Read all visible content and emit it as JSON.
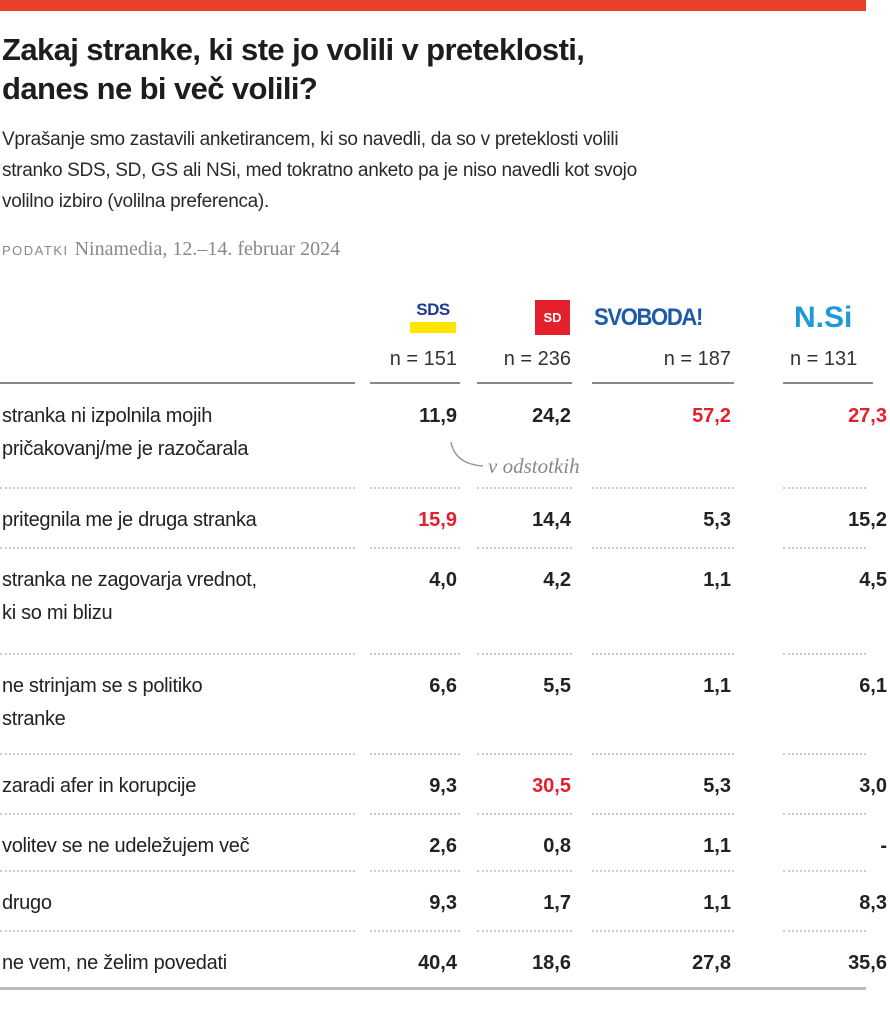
{
  "title_lines": [
    "Zakaj stranke, ki ste jo volili v preteklosti,",
    "danes ne bi več volili?"
  ],
  "subtitle_lines": [
    "Vprašanje smo zastavili anketirancem, ki so navedli, da so v preteklosti volili",
    "stranko SDS, SD, GS ali NSi, med tokratno anketo pa je niso navedli kot svojo",
    "volilno izbiro (volilna preferenca)."
  ],
  "source": {
    "label": "PODATKI",
    "text": "Ninamedia, 12.–14. februar 2024"
  },
  "annotation": "v odstotkih",
  "colors": {
    "accent": "#e8402a",
    "highlight": "#e3202b",
    "sds_blue": "#1f3a93",
    "sds_yellow": "#ffe600",
    "sd_red": "#e3202b",
    "svoboda_blue": "#1c5ba8",
    "nsi_blue": "#1a9ad6"
  },
  "chart_data": {
    "type": "table",
    "unit": "v odstotkih",
    "columns": [
      {
        "party": "SDS",
        "n": "n = 151"
      },
      {
        "party": "SD",
        "n": "n = 236"
      },
      {
        "party": "SVOBODA!",
        "n": "n = 187"
      },
      {
        "party": "N.Si",
        "n": "n = 131"
      }
    ],
    "rows": [
      {
        "label_lines": [
          "stranka ni izpolnila mojih",
          "pričakovanj/me je razočarala"
        ],
        "values": [
          "11,9",
          "24,2",
          "57,2",
          "27,3"
        ],
        "highlight": [
          false,
          false,
          true,
          true
        ]
      },
      {
        "label_lines": [
          "pritegnila me je druga stranka"
        ],
        "values": [
          "15,9",
          "14,4",
          "5,3",
          "15,2"
        ],
        "highlight": [
          true,
          false,
          false,
          false
        ]
      },
      {
        "label_lines": [
          "stranka ne zagovarja vrednot,",
          "ki so mi blizu"
        ],
        "values": [
          "4,0",
          "4,2",
          "1,1",
          "4,5"
        ],
        "highlight": [
          false,
          false,
          false,
          false
        ]
      },
      {
        "label_lines": [
          "ne strinjam se s politiko",
          "stranke"
        ],
        "values": [
          "6,6",
          "5,5",
          "1,1",
          "6,1"
        ],
        "highlight": [
          false,
          false,
          false,
          false
        ]
      },
      {
        "label_lines": [
          "zaradi afer in korupcije"
        ],
        "values": [
          "9,3",
          "30,5",
          "5,3",
          "3,0"
        ],
        "highlight": [
          false,
          true,
          false,
          false
        ]
      },
      {
        "label_lines": [
          "volitev se ne udeležujem več"
        ],
        "values": [
          "2,6",
          "0,8",
          "1,1",
          "-"
        ],
        "highlight": [
          false,
          false,
          false,
          false
        ]
      },
      {
        "label_lines": [
          "drugo"
        ],
        "values": [
          "9,3",
          "1,7",
          "1,1",
          "8,3"
        ],
        "highlight": [
          false,
          false,
          false,
          false
        ]
      },
      {
        "label_lines": [
          "ne vem, ne želim povedati"
        ],
        "values": [
          "40,4",
          "18,6",
          "27,8",
          "35,6"
        ],
        "highlight": [
          false,
          false,
          false,
          false
        ]
      }
    ]
  }
}
